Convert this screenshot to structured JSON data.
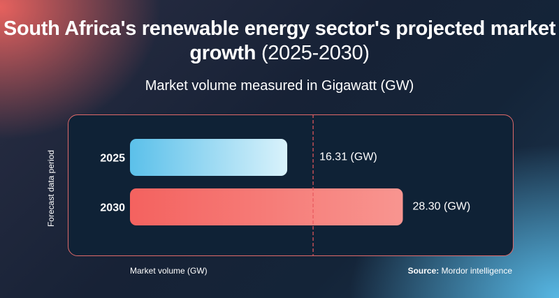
{
  "title": {
    "main": "South Africa's renewable energy sector's projected market growth",
    "years": "(2025-2030)"
  },
  "subtitle": "Market volume measured in Gigawatt (GW)",
  "source": {
    "label": "Source:",
    "text": "Mordor intelligence"
  },
  "colors": {
    "bar_2025_start": "#5bc0ea",
    "bar_2025_end": "#d9f2fb",
    "bar_2030_start": "#f4625f",
    "bar_2030_end": "#f89590",
    "panel_border": "#e06a6a",
    "reference_line": "#e8595c"
  },
  "chart_data": {
    "type": "bar",
    "orientation": "horizontal",
    "title": "South Africa's renewable energy sector's projected market growth (2025-2030)",
    "subtitle": "Market volume measured in Gigawatt (GW)",
    "xlabel": "Market volume (GW)",
    "ylabel": "Forecast data period",
    "categories": [
      "2025",
      "2030"
    ],
    "values": [
      16.31,
      28.3
    ],
    "value_labels": [
      "16.31 (GW)",
      "28.30 (GW)"
    ],
    "unit": "GW",
    "xlim": [
      0,
      33.5
    ],
    "reference_line": 16.31,
    "grid": false,
    "legend": "none"
  }
}
